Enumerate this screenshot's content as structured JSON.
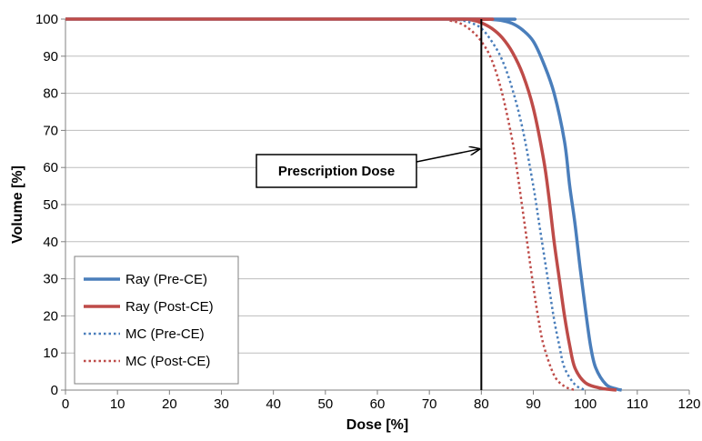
{
  "colors": {
    "ray_pre": "#4a7ebb",
    "ray_post": "#be4b48",
    "mc_pre": "#4a7ebb",
    "mc_post": "#be4b48",
    "grid": "#bdbdbd",
    "axis": "#808080"
  },
  "chart_data": {
    "type": "line",
    "title": "",
    "xlabel": "Dose [%]",
    "ylabel": "Volume [%]",
    "xlim": [
      0,
      120
    ],
    "ylim": [
      0,
      100
    ],
    "xticks": [
      "0",
      "10",
      "20",
      "30",
      "40",
      "50",
      "60",
      "70",
      "80",
      "90",
      "100",
      "110",
      "120"
    ],
    "yticks": [
      "0",
      "10",
      "20",
      "30",
      "40",
      "50",
      "60",
      "70",
      "80",
      "90",
      "100"
    ],
    "grid": "horizontal",
    "legend_position": "bottom-left",
    "series": [
      {
        "name": "Ray (Pre-CE)",
        "style": "solid",
        "color": "#4a7ebb",
        "x": [
          0,
          80,
          82,
          84,
          86,
          88,
          90,
          92,
          94,
          96,
          97,
          98,
          99,
          100,
          101,
          102,
          104,
          106,
          107
        ],
        "y": [
          100,
          100,
          99.9,
          99.6,
          98.8,
          97,
          94,
          88,
          80,
          67,
          55,
          45,
          33,
          22,
          12,
          6,
          1.5,
          0.3,
          0
        ]
      },
      {
        "name": "Ray (Post-CE)",
        "style": "solid",
        "color": "#be4b48",
        "x": [
          0,
          76,
          78,
          80,
          82,
          84,
          86,
          88,
          90,
          92,
          93,
          94,
          95,
          96,
          97,
          98,
          100,
          103,
          106
        ],
        "y": [
          100,
          100,
          99.8,
          99,
          97.5,
          95,
          91,
          85,
          76,
          62,
          52,
          40,
          30,
          20,
          12,
          6,
          2,
          0.5,
          0
        ]
      },
      {
        "name": "MC (Pre-CE)",
        "style": "dotted",
        "color": "#4a7ebb",
        "x": [
          0,
          74,
          76,
          78,
          80,
          82,
          84,
          86,
          88,
          90,
          91,
          92,
          93,
          94,
          95,
          96,
          98,
          100
        ],
        "y": [
          100,
          100,
          99.7,
          99,
          97.5,
          94,
          89,
          81,
          70,
          55,
          46,
          37,
          28,
          19,
          12,
          6,
          1.5,
          0
        ]
      },
      {
        "name": "MC (Post-CE)",
        "style": "dotted",
        "color": "#be4b48",
        "x": [
          0,
          72,
          74,
          76,
          78,
          80,
          82,
          84,
          86,
          87,
          88,
          89,
          90,
          91,
          92,
          94,
          96,
          98
        ],
        "y": [
          100,
          100,
          99.6,
          98.8,
          97,
          94,
          89,
          80,
          67,
          58,
          48,
          38,
          28,
          19,
          12,
          4,
          1,
          0
        ]
      }
    ],
    "annotations": [
      {
        "text": "Prescription Dose",
        "arrow_to": [
          80,
          65
        ]
      }
    ],
    "reference_lines": [
      {
        "axis": "x",
        "value": 80,
        "color": "#000000"
      }
    ]
  }
}
